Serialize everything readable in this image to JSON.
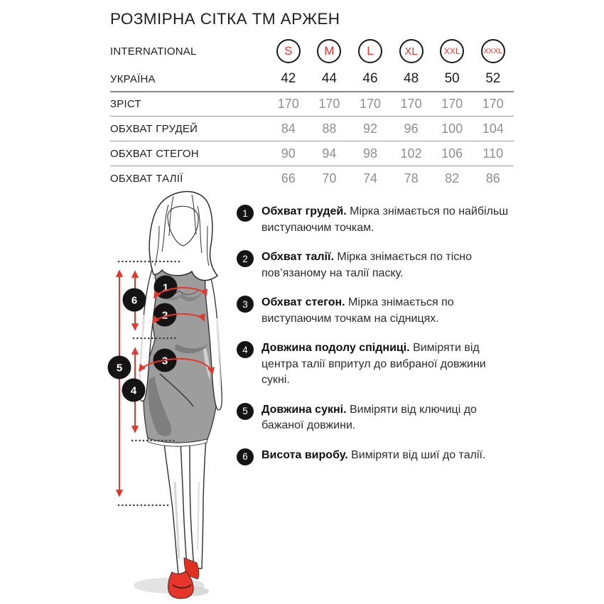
{
  "title": "РОЗМІРНА СІТКА ТМ АРЖЕН",
  "colors": {
    "accent_red": "#e8352a",
    "shoe_red": "#e0301f",
    "badge_black": "#141414",
    "circle_outline": "#1a1a1a",
    "label_dark": "#1d1d1d",
    "value_gray": "#8f8f8f",
    "divider_gray": "#9a9a9a",
    "dress_gray": "#9d9d9d"
  },
  "size_table": {
    "header_rows": [
      {
        "id": "international",
        "label": "INTERNATIONAL",
        "type": "circled",
        "values": [
          "S",
          "M",
          "L",
          "XL",
          "XXL",
          "XXXL"
        ]
      },
      {
        "id": "ukraine",
        "label": "УКРАЇНА",
        "type": "plain",
        "values": [
          "42",
          "44",
          "46",
          "48",
          "50",
          "52"
        ]
      }
    ],
    "measurement_rows": [
      {
        "id": "height",
        "label": "ЗРІСТ",
        "values": [
          "170",
          "170",
          "170",
          "170",
          "170",
          "170"
        ]
      },
      {
        "id": "chest",
        "label": "ОБХВАТ ГРУДЕЙ",
        "values": [
          "84",
          "88",
          "92",
          "96",
          "100",
          "104"
        ]
      },
      {
        "id": "hips",
        "label": "ОБХВАТ СТЕГОН",
        "values": [
          "90",
          "94",
          "98",
          "102",
          "106",
          "110"
        ]
      },
      {
        "id": "waist",
        "label": "ОБХВАТ ТАЛІЇ",
        "values": [
          "66",
          "70",
          "74",
          "78",
          "82",
          "86"
        ]
      }
    ]
  },
  "legend": {
    "items": [
      {
        "number": "1",
        "term": "Обхват грудей.",
        "description": "Мірка знімається по найбільш виступаючим точкам."
      },
      {
        "number": "2",
        "term": "Обхват талії.",
        "description": "Мірка знімається по тісно пов’язаному на талії паску."
      },
      {
        "number": "3",
        "term": "Обхват стегон.",
        "description": "Мірка знімається по виступаючим точкам на сідницях."
      },
      {
        "number": "4",
        "term": "Довжина подолу спідниці.",
        "description": "Виміряти від центра талії впритул до вибраної довжини сукні."
      },
      {
        "number": "5",
        "term": "Довжина сукні.",
        "description": "Виміряти від ключиці до бажаної довжини."
      },
      {
        "number": "6",
        "term": "Висота виробу.",
        "description": "Виміряти від шиї до талії."
      }
    ]
  },
  "figure": {
    "marker_numbers": [
      "1",
      "2",
      "3",
      "4",
      "5",
      "6"
    ]
  }
}
